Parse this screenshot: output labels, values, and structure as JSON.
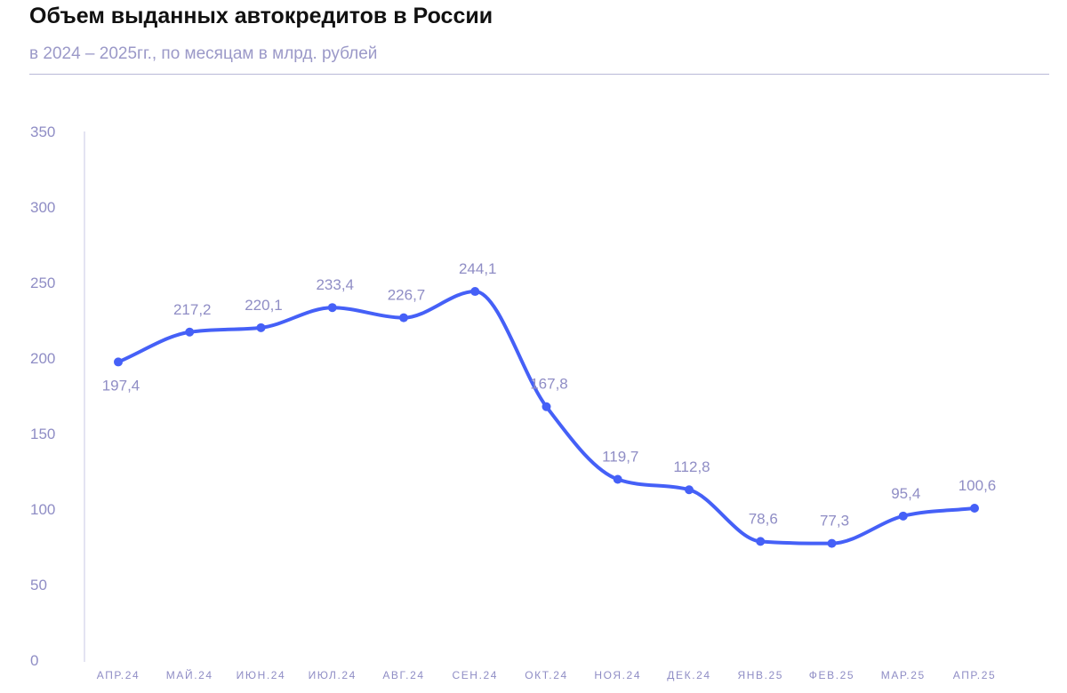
{
  "title": "Объем выданных автокредитов в России",
  "subtitle": "в 2024 – 2025гг., по месяцам в млрд. рублей",
  "colors": {
    "line": "#4560f7",
    "axis_text": "#8f8dc5",
    "label_text": "#8f8dc5",
    "axis_line": "#c9c8e6"
  },
  "chart_data": {
    "type": "line",
    "categories": [
      "АПР.24",
      "МАЙ.24",
      "ИЮН.24",
      "ИЮЛ.24",
      "АВГ.24",
      "СЕН.24",
      "ОКТ.24",
      "НОЯ.24",
      "ДЕК.24",
      "ЯНВ.25",
      "ФЕВ.25",
      "МАР.25",
      "АПР.25"
    ],
    "values": [
      197.4,
      217.2,
      220.1,
      233.4,
      226.7,
      244.1,
      167.8,
      119.7,
      112.8,
      78.6,
      77.3,
      95.4,
      100.6
    ],
    "value_labels": [
      "197,4",
      "217,2",
      "220,1",
      "233,4",
      "226,7",
      "244,1",
      "167,8",
      "119,7",
      "112,8",
      "78,6",
      "77,3",
      "95,4",
      "100,6"
    ],
    "ylim": [
      0,
      350
    ],
    "yticks": [
      0,
      50,
      100,
      150,
      200,
      250,
      300,
      350
    ],
    "grid": false,
    "legend": "none",
    "smooth": true
  }
}
